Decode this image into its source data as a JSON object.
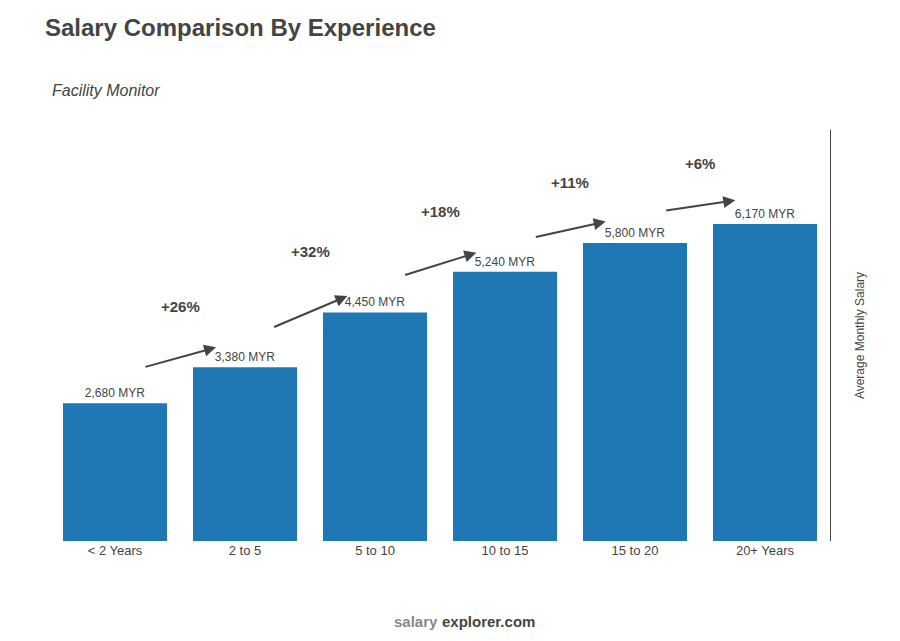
{
  "chart_data": {
    "type": "bar",
    "title": "Salary Comparison By Experience",
    "subtitle": "Facility Monitor",
    "ylabel": "Average Monthly Salary",
    "categories": [
      "< 2 Years",
      "2 to 5",
      "5 to 10",
      "10 to 15",
      "15 to 20",
      "20+ Years"
    ],
    "values": [
      2680,
      3380,
      4450,
      5240,
      5800,
      6170
    ],
    "value_labels": [
      "2,680 MYR",
      "3,380 MYR",
      "4,450 MYR",
      "5,240 MYR",
      "5,800 MYR",
      "6,170 MYR"
    ],
    "data_labels": true,
    "ylim": [
      0,
      8000
    ],
    "yticks": [],
    "tick_labels": "x",
    "grid": false,
    "annotations": [
      {
        "text": "+26%",
        "from": "< 2 Years",
        "to": "2 to 5"
      },
      {
        "text": "+32%",
        "from": "2 to 5",
        "to": "5 to 10"
      },
      {
        "text": "+18%",
        "from": "5 to 10",
        "to": "10 to 15"
      },
      {
        "text": "+11%",
        "from": "10 to 15",
        "to": "15 to 20"
      },
      {
        "text": "+6%",
        "from": "15 to 20",
        "to": "20+ Years"
      }
    ],
    "watermark": [
      "salary",
      "explorer.com"
    ]
  }
}
